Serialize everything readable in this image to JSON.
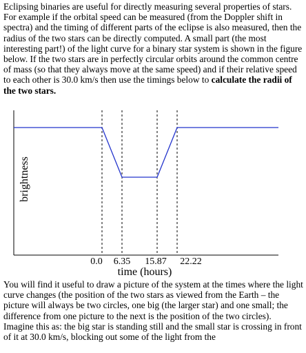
{
  "paragraph1": {
    "text": "Eclipsing binaries are useful for directly measuring several properties of stars.  For example if the orbital speed can be measured (from the Doppler shift in spectra) and the timing of different parts of the eclipse is also measured, then the radius of the two stars can be directly computed. A small part (the most interesting part!) of the light curve for a binary star system is shown in the figure below.  If the two stars are in perfectly circular orbits around the common centre of mass (so that they always move at the same speed) and if their relative speed to each other is 30.0 km/s then use the timings below to ",
    "bold": "calculate the radii of the two stars."
  },
  "figure": {
    "ylabel": "brightness",
    "xlabel": "time (hours)",
    "xticks": [
      "0.0",
      "6.35",
      "15.87",
      "22.22"
    ]
  },
  "paragraph2": {
    "text": "You will find it useful to draw a picture of the system at the times where the light curve changes (the position of the two stars as viewed from the Earth – the picture will always be two circles, one big (the larger star) and one small; the difference from one picture to the next is the position of the two circles). Imagine this as: the big star is standing still and the small star is crossing in front of it at 30.0 km/s, blocking out some of the light from the"
  }
}
